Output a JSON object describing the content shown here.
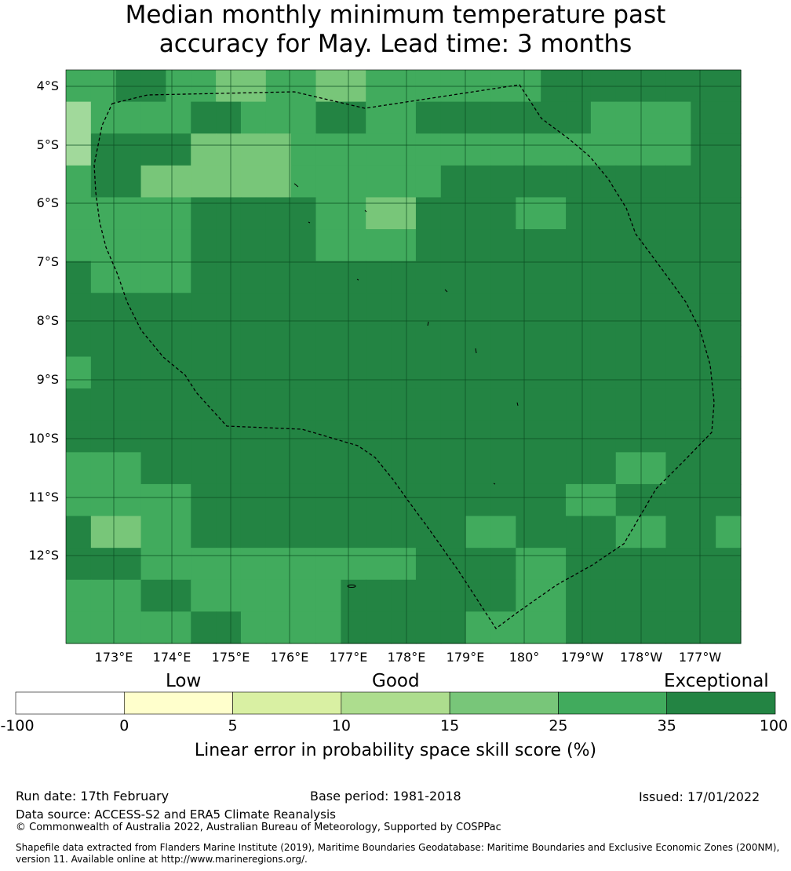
{
  "title": {
    "line1": "Median monthly minimum temperature past",
    "line2": "accuracy for May. Lead time: 3 months"
  },
  "map": {
    "lat_labels": [
      "4°S",
      "5°S",
      "6°S",
      "7°S",
      "8°S",
      "9°S",
      "10°S",
      "11°S",
      "12°S"
    ],
    "lon_labels": [
      "173°E",
      "174°E",
      "175°E",
      "176°E",
      "177°E",
      "178°E",
      "179°E",
      "180°",
      "179°W",
      "178°W",
      "177°W"
    ],
    "grid": [
      [
        2,
        2,
        3,
        3,
        2,
        2,
        1,
        1,
        2,
        2,
        1,
        1,
        2,
        2,
        2,
        2,
        2,
        2,
        2,
        3,
        3,
        3,
        3,
        3,
        3,
        3,
        3
      ],
      [
        0,
        2,
        2,
        2,
        2,
        3,
        3,
        2,
        2,
        2,
        3,
        3,
        2,
        2,
        3,
        3,
        3,
        3,
        3,
        3,
        3,
        2,
        2,
        2,
        2,
        3,
        3
      ],
      [
        0,
        3,
        3,
        3,
        3,
        1,
        1,
        1,
        1,
        2,
        2,
        2,
        2,
        2,
        2,
        2,
        2,
        2,
        2,
        2,
        2,
        2,
        2,
        2,
        2,
        3,
        3
      ],
      [
        2,
        3,
        3,
        1,
        1,
        1,
        1,
        1,
        1,
        2,
        2,
        2,
        2,
        2,
        2,
        3,
        3,
        3,
        3,
        3,
        3,
        3,
        3,
        3,
        3,
        3,
        3
      ],
      [
        2,
        2,
        2,
        2,
        2,
        3,
        3,
        3,
        3,
        3,
        2,
        2,
        1,
        1,
        3,
        3,
        3,
        3,
        2,
        2,
        3,
        3,
        3,
        3,
        3,
        3,
        3
      ],
      [
        2,
        2,
        2,
        2,
        2,
        3,
        3,
        3,
        3,
        3,
        2,
        2,
        2,
        2,
        3,
        3,
        3,
        3,
        3,
        3,
        3,
        3,
        3,
        3,
        3,
        3,
        3
      ],
      [
        3,
        2,
        2,
        2,
        2,
        3,
        3,
        3,
        3,
        3,
        3,
        3,
        3,
        3,
        3,
        3,
        3,
        3,
        3,
        3,
        3,
        3,
        3,
        3,
        3,
        3,
        3
      ],
      [
        3,
        3,
        3,
        3,
        3,
        3,
        3,
        3,
        3,
        3,
        3,
        3,
        3,
        3,
        3,
        3,
        3,
        3,
        3,
        3,
        3,
        3,
        3,
        3,
        3,
        3,
        3
      ],
      [
        3,
        3,
        3,
        3,
        3,
        3,
        3,
        3,
        3,
        3,
        3,
        3,
        3,
        3,
        3,
        3,
        3,
        3,
        3,
        3,
        3,
        3,
        3,
        3,
        3,
        3,
        3
      ],
      [
        2,
        3,
        3,
        3,
        3,
        3,
        3,
        3,
        3,
        3,
        3,
        3,
        3,
        3,
        3,
        3,
        3,
        3,
        3,
        3,
        3,
        3,
        3,
        3,
        3,
        3,
        3
      ],
      [
        3,
        3,
        3,
        3,
        3,
        3,
        3,
        3,
        3,
        3,
        3,
        3,
        3,
        3,
        3,
        3,
        3,
        3,
        3,
        3,
        3,
        3,
        3,
        3,
        3,
        3,
        3
      ],
      [
        3,
        3,
        3,
        3,
        3,
        3,
        3,
        3,
        3,
        3,
        3,
        3,
        3,
        3,
        3,
        3,
        3,
        3,
        3,
        3,
        3,
        3,
        3,
        3,
        3,
        3,
        3
      ],
      [
        2,
        2,
        2,
        3,
        3,
        3,
        3,
        3,
        3,
        3,
        3,
        3,
        3,
        3,
        3,
        3,
        3,
        3,
        3,
        3,
        3,
        3,
        2,
        2,
        3,
        3,
        3
      ],
      [
        2,
        2,
        2,
        2,
        2,
        3,
        3,
        3,
        3,
        3,
        3,
        3,
        3,
        3,
        3,
        3,
        3,
        3,
        3,
        3,
        2,
        2,
        3,
        3,
        3,
        3,
        3
      ],
      [
        3,
        1,
        1,
        2,
        2,
        3,
        3,
        3,
        3,
        3,
        3,
        3,
        3,
        3,
        3,
        3,
        2,
        2,
        3,
        3,
        3,
        3,
        2,
        2,
        3,
        3,
        2
      ],
      [
        3,
        3,
        3,
        2,
        2,
        2,
        2,
        2,
        2,
        2,
        2,
        2,
        2,
        2,
        3,
        3,
        3,
        3,
        2,
        2,
        3,
        3,
        3,
        3,
        3,
        3,
        3
      ],
      [
        2,
        2,
        2,
        3,
        3,
        2,
        2,
        2,
        2,
        2,
        2,
        3,
        3,
        3,
        3,
        3,
        3,
        3,
        2,
        2,
        3,
        3,
        3,
        3,
        3,
        3,
        3
      ],
      [
        2,
        2,
        2,
        2,
        2,
        3,
        3,
        2,
        2,
        2,
        2,
        3,
        3,
        3,
        3,
        3,
        2,
        2,
        2,
        2,
        3,
        3,
        3,
        3,
        3,
        3,
        3
      ]
    ]
  },
  "colorbar": {
    "categories": [
      "Low",
      "Good",
      "Exceptional"
    ],
    "ticks": [
      "-100",
      "0",
      "5",
      "10",
      "15",
      "25",
      "35",
      "100"
    ],
    "colors": [
      "#ffffff",
      "#ffffcc",
      "#d9f0a3",
      "#addd8e",
      "#78c679",
      "#41ab5d",
      "#238443"
    ],
    "label": "Linear error in probability space skill score (%)"
  },
  "footer": {
    "run_date": "Run date: 17th February",
    "base_period": "Base period: 1981-2018",
    "issued": "Issued: 17/01/2022",
    "data_source": "Data source: ACCESS-S2 and ERA5 Climate Reanalysis",
    "copyright": "© Commonwealth of Australia 2022, Australian Bureau of Meteorology, Supported by COSPPac",
    "shapefile_line1": "Shapefile data extracted from Flanders Marine Institute (2019), Maritime Boundaries Geodatabase: Maritime Boundaries and Exclusive Economic Zones (200NM),",
    "shapefile_line2": "version 11. Available online at http://www.marineregions.org/."
  }
}
